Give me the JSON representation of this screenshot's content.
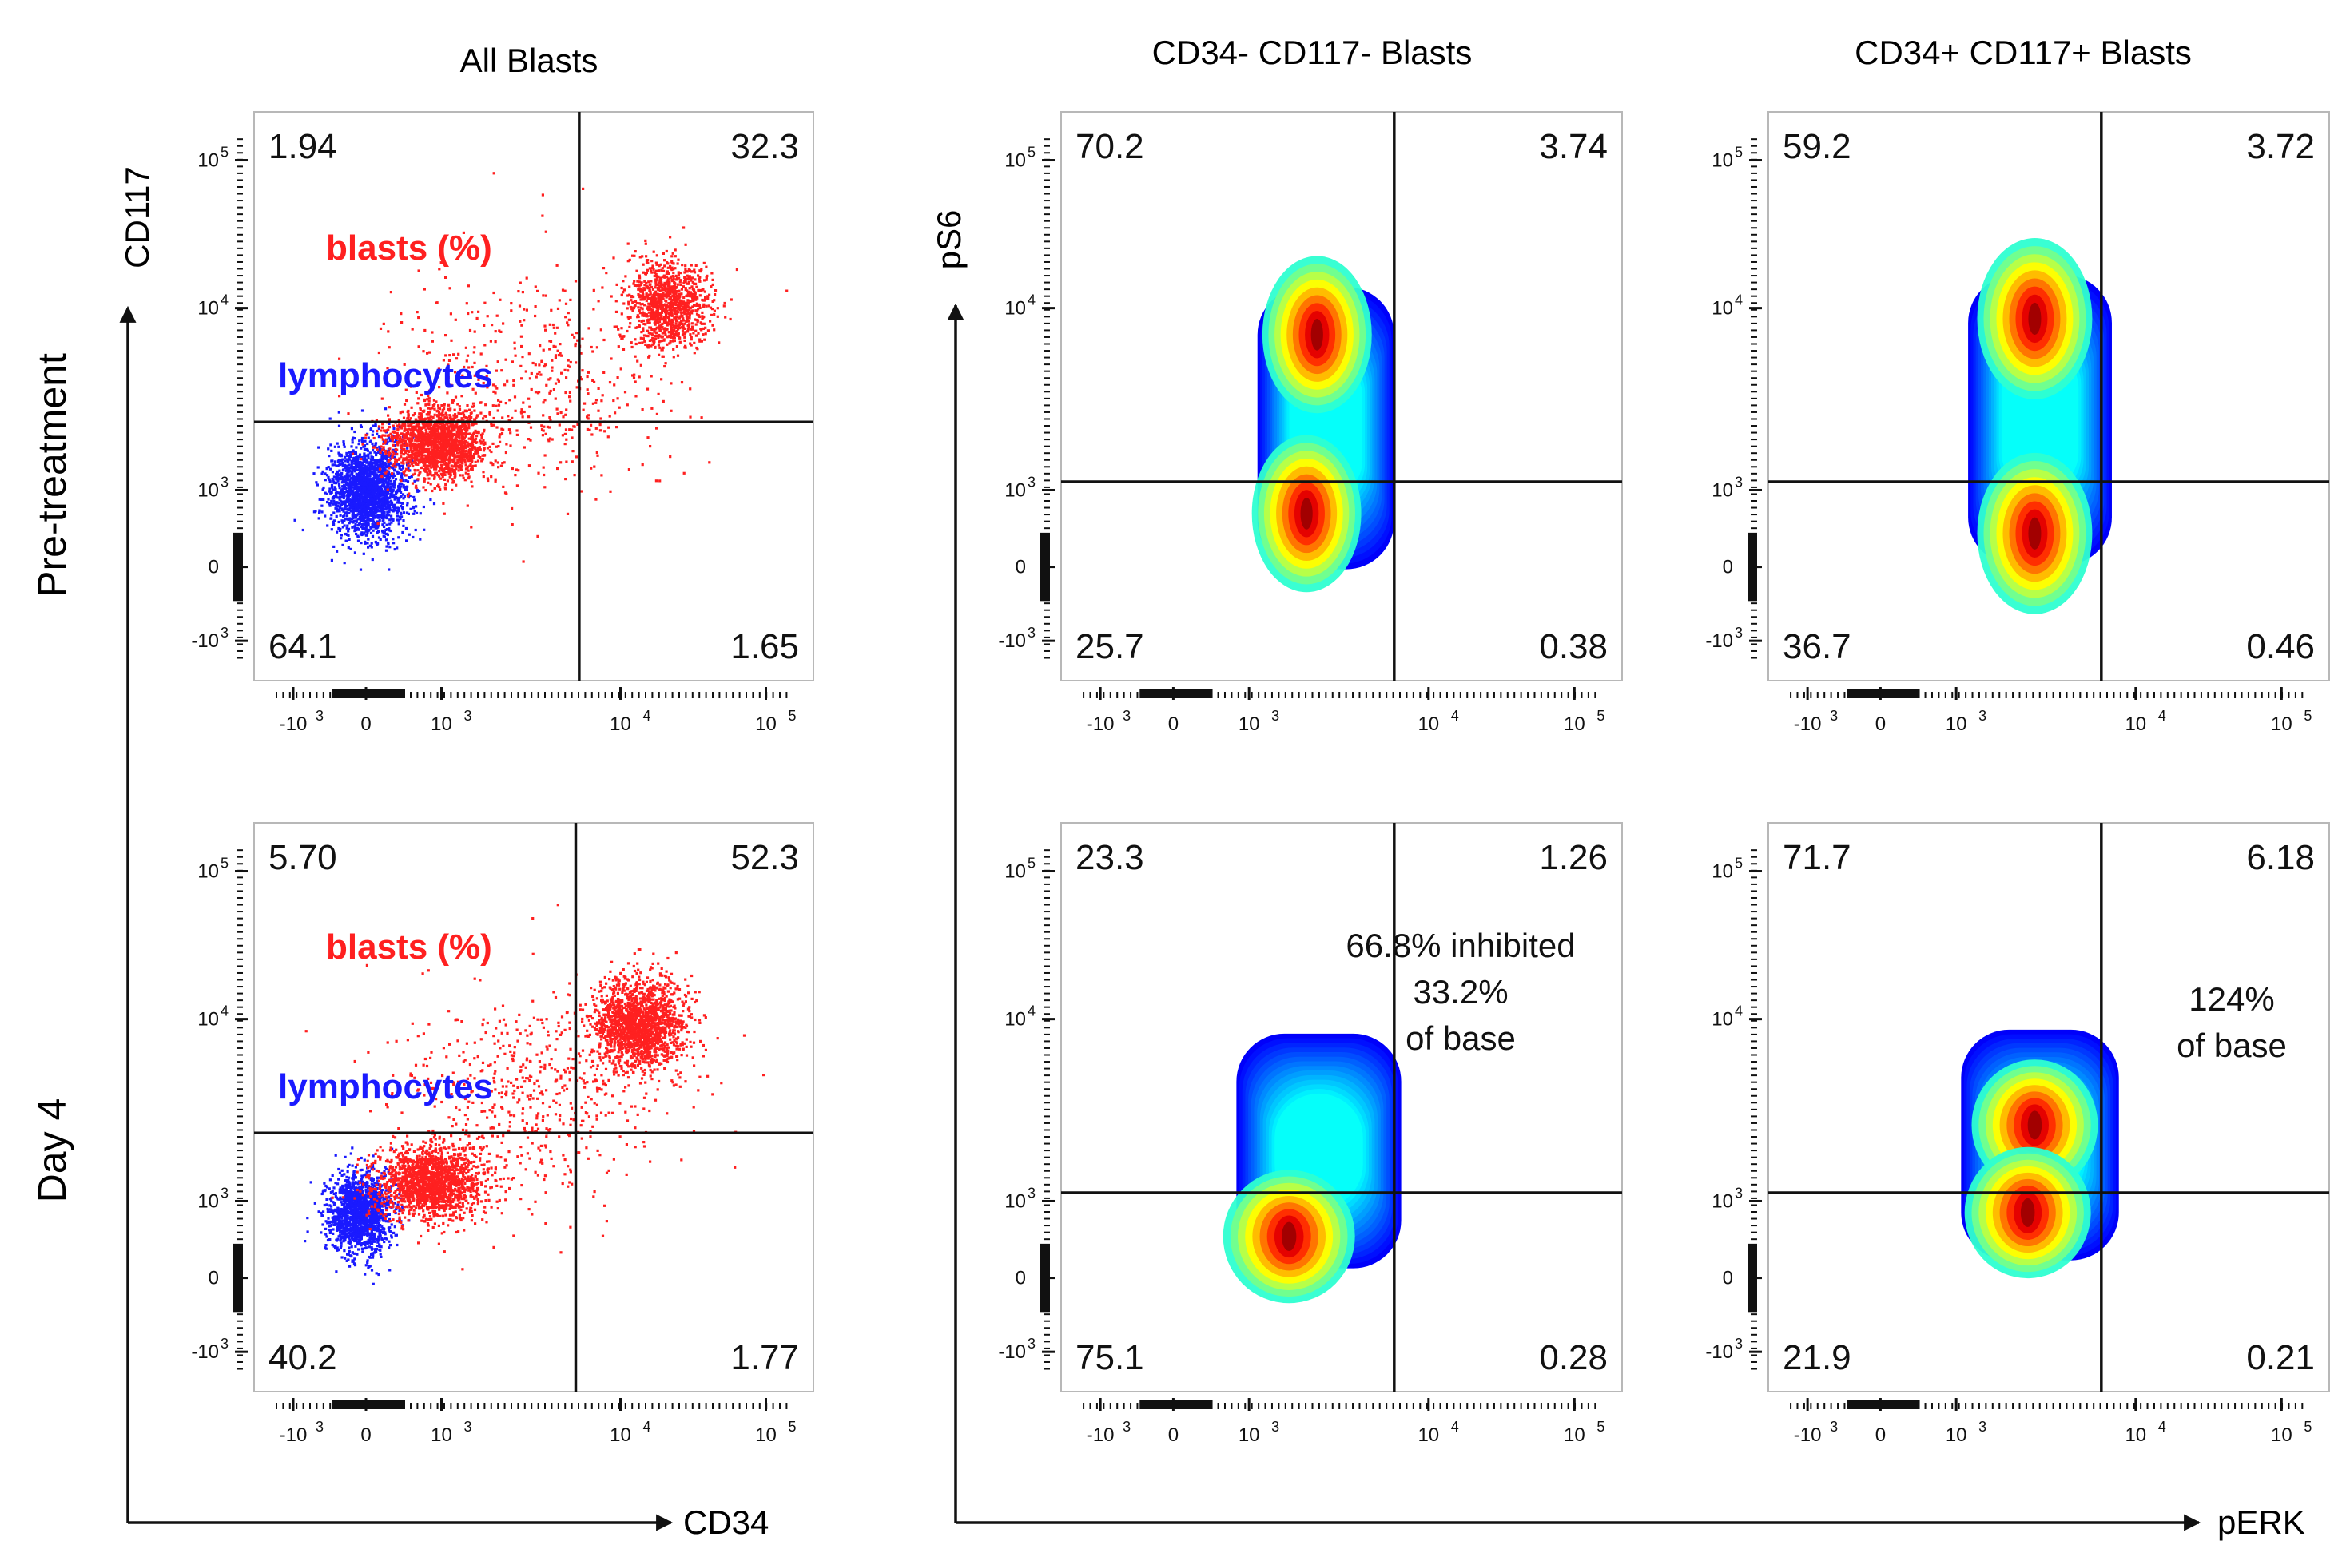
{
  "figure": {
    "columns": [
      "All Blasts",
      "CD34- CD117- Blasts",
      "CD34+ CD117+ Blasts"
    ],
    "rows": [
      "Pre-treatment",
      "Day 4"
    ],
    "left_axes": {
      "x_label": "CD34",
      "y_label": "CD117"
    },
    "right_axes": {
      "x_label": "pERK",
      "y_label": "pS6"
    },
    "tick_labels": [
      "-10",
      "3",
      "0",
      "10",
      "3",
      "10",
      "4",
      "10",
      "5"
    ],
    "colors": {
      "blasts": "#ff2020",
      "lymphocytes": "#1a1aff",
      "gate": "#111111",
      "frame": "#b8b8b8"
    }
  },
  "chart_data": [
    {
      "type": "scatter",
      "row": "Pre-treatment",
      "column": "All Blasts",
      "xlabel": "CD34",
      "ylabel": "CD117",
      "quadrants": {
        "upper_left": "1.94",
        "upper_right": "32.3",
        "lower_left": "64.1",
        "lower_right": "1.65"
      },
      "annotations": [
        "blasts (%)",
        "lymphocytes"
      ],
      "gate": {
        "x": 0.83,
        "y": 0.5
      },
      "populations": [
        {
          "name": "lymphocytes",
          "color": "#1a1aff",
          "center": [
            0.22,
            0.33
          ],
          "spread": [
            0.055,
            0.06
          ],
          "count": 2000
        },
        {
          "name": "blasts",
          "color": "#ff2020",
          "center": [
            0.42,
            0.45
          ],
          "spread": [
            0.07,
            0.045
          ],
          "count": 1700
        },
        {
          "name": "blasts",
          "color": "#ff2020",
          "center": [
            1.08,
            0.8
          ],
          "spread": [
            0.06,
            0.055
          ],
          "count": 1100
        },
        {
          "name": "blasts",
          "color": "#ff2020",
          "center": [
            0.7,
            0.6
          ],
          "spread": [
            0.2,
            0.14
          ],
          "count": 500
        }
      ]
    },
    {
      "type": "heatmap",
      "row": "Pre-treatment",
      "column": "CD34- CD117- Blasts",
      "xlabel": "pERK",
      "ylabel": "pS6",
      "quadrants": {
        "upper_left": "70.2",
        "upper_right": "3.74",
        "lower_left": "25.7",
        "lower_right": "0.38"
      },
      "gate": {
        "x": 0.85,
        "y": 0.35
      },
      "density": {
        "x_range": [
          0.46,
          0.85
        ],
        "y_range": [
          0.13,
          0.84
        ],
        "peaks": [
          [
            0.63,
            0.72
          ],
          [
            0.6,
            0.27
          ]
        ]
      }
    },
    {
      "type": "heatmap",
      "row": "Pre-treatment",
      "column": "CD34+ CD117+ Blasts",
      "xlabel": "pERK",
      "ylabel": "pS6",
      "quadrants": {
        "upper_left": "59.2",
        "upper_right": "3.72",
        "lower_left": "36.7",
        "lower_right": "0.46"
      },
      "gate": {
        "x": 0.85,
        "y": 0.35
      },
      "density": {
        "x_range": [
          0.47,
          0.88
        ],
        "y_range": [
          0.14,
          0.87
        ],
        "peaks": [
          [
            0.66,
            0.22
          ],
          [
            0.66,
            0.76
          ]
        ]
      }
    },
    {
      "type": "scatter",
      "row": "Day 4",
      "column": "All Blasts",
      "xlabel": "CD34",
      "ylabel": "CD117",
      "quadrants": {
        "upper_left": "5.70",
        "upper_right": "52.3",
        "lower_left": "40.2",
        "lower_right": "1.77"
      },
      "annotations": [
        "blasts (%)",
        "lymphocytes"
      ],
      "gate": {
        "x": 0.82,
        "y": 0.5
      },
      "populations": [
        {
          "name": "lymphocytes",
          "color": "#1a1aff",
          "center": [
            0.2,
            0.3
          ],
          "spread": [
            0.045,
            0.05
          ],
          "count": 1600
        },
        {
          "name": "blasts",
          "color": "#ff2020",
          "center": [
            0.4,
            0.38
          ],
          "spread": [
            0.075,
            0.045
          ],
          "count": 1700
        },
        {
          "name": "blasts",
          "color": "#ff2020",
          "center": [
            1.0,
            0.78
          ],
          "spread": [
            0.065,
            0.055
          ],
          "count": 1700
        },
        {
          "name": "blasts",
          "color": "#ff2020",
          "center": [
            0.68,
            0.6
          ],
          "spread": [
            0.2,
            0.14
          ],
          "count": 600
        }
      ]
    },
    {
      "type": "heatmap",
      "row": "Day 4",
      "column": "CD34- CD117- Blasts",
      "xlabel": "pERK",
      "ylabel": "pS6",
      "quadrants": {
        "upper_left": "23.3",
        "upper_right": "1.26",
        "lower_left": "75.1",
        "lower_right": "0.28"
      },
      "annotation_lines": [
        "66.8% inhibited",
        "33.2%",
        "of base"
      ],
      "gate": {
        "x": 0.85,
        "y": 0.35
      },
      "density": {
        "x_range": [
          0.4,
          0.87
        ],
        "y_range": [
          0.16,
          0.75
        ],
        "peaks": [
          [
            0.55,
            0.24
          ]
        ]
      }
    },
    {
      "type": "heatmap",
      "row": "Day 4",
      "column": "CD34+ CD117+ Blasts",
      "xlabel": "pERK",
      "ylabel": "pS6",
      "quadrants": {
        "upper_left": "71.7",
        "upper_right": "6.18",
        "lower_left": "21.9",
        "lower_right": "0.21"
      },
      "annotation_lines": [
        "124%",
        "of base"
      ],
      "gate": {
        "x": 0.85,
        "y": 0.35
      },
      "density": {
        "x_range": [
          0.45,
          0.9
        ],
        "y_range": [
          0.18,
          0.76
        ],
        "peaks": [
          [
            0.66,
            0.52
          ],
          [
            0.64,
            0.3
          ]
        ]
      }
    }
  ]
}
